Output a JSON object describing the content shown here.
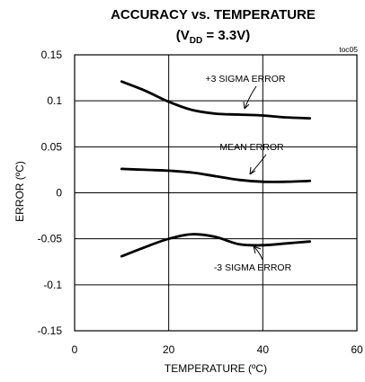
{
  "chart_data": {
    "type": "line",
    "title_line1": "ACCURACY vs. TEMPERATURE",
    "title_line2_prefix": "(V",
    "title_line2_sub": "DD",
    "title_line2_suffix": " = 3.3V)",
    "tag": "toc05",
    "xlabel": "TEMPERATURE (ºC)",
    "ylabel": "ERROR (ºC)",
    "xlim": [
      0,
      60
    ],
    "ylim": [
      -0.15,
      0.15
    ],
    "x_ticks": [
      "0",
      "20",
      "40",
      "60"
    ],
    "y_ticks": [
      "0.15",
      "0.1",
      "0.05",
      "0",
      "-0.05",
      "-0.1",
      "-0.15"
    ],
    "grid": true,
    "series": [
      {
        "name": "+3 SIGMA ERROR",
        "x": [
          10,
          15,
          20,
          25,
          30,
          35,
          40,
          45,
          50
        ],
        "y": [
          0.121,
          0.111,
          0.099,
          0.09,
          0.086,
          0.085,
          0.084,
          0.082,
          0.081
        ]
      },
      {
        "name": "MEAN ERROR",
        "x": [
          10,
          15,
          20,
          25,
          30,
          35,
          40,
          45,
          50
        ],
        "y": [
          0.026,
          0.025,
          0.024,
          0.022,
          0.018,
          0.014,
          0.012,
          0.012,
          0.013
        ]
      },
      {
        "name": "-3 SIGMA ERROR",
        "x": [
          10,
          15,
          20,
          25,
          30,
          35,
          40,
          45,
          50
        ],
        "y": [
          -0.069,
          -0.059,
          -0.05,
          -0.045,
          -0.048,
          -0.056,
          -0.057,
          -0.055,
          -0.053
        ]
      }
    ]
  }
}
